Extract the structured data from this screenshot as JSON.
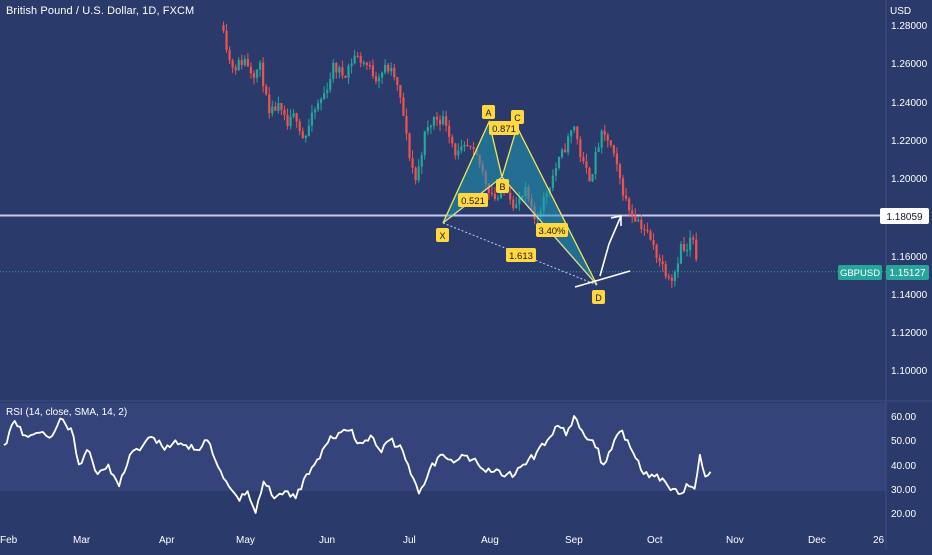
{
  "header": {
    "title": "British Pound / U.S. Dollar, 1D, FXCM"
  },
  "price_axis": {
    "unit": "USD",
    "labels": [
      "1.28000",
      "1.26000",
      "1.24000",
      "1.22000",
      "1.20000",
      "1.16000",
      "1.14000",
      "1.12000",
      "1.10000"
    ]
  },
  "rsi_axis": {
    "labels": [
      "60.00",
      "50.00",
      "40.00",
      "30.00",
      "20.00"
    ]
  },
  "time_axis": {
    "labels": [
      "Feb",
      "Mar",
      "Apr",
      "May",
      "Jun",
      "Jul",
      "Aug",
      "Sep",
      "Oct",
      "Nov",
      "Dec",
      "26"
    ]
  },
  "badges": {
    "level_value": "1.18059",
    "symbol": "GBPUSD",
    "last_price": "1.15127"
  },
  "pattern": {
    "points": [
      "X",
      "A",
      "B",
      "C",
      "D"
    ],
    "ratios": [
      "0.521",
      "0.871",
      "3.40%",
      "1.613"
    ]
  },
  "rsi": {
    "label": "RSI (14, close, SMA, 14, 2)"
  },
  "colors": {
    "background": "#2a3a6b",
    "rsi_band": "#34447a",
    "bull": "#26a69a",
    "bear": "#ef5350",
    "pattern_fill": "#1e9bb4",
    "pattern_line": "#f2e94e",
    "label_bg": "#ffd740",
    "level_line": "#c5c8f0",
    "last_price": "#26a69a"
  },
  "chart_data": [
    {
      "type": "candlestick",
      "title": "British Pound / U.S. Dollar, 1D, FXCM",
      "ylabel": "USD",
      "ylim": [
        1.09,
        1.285
      ],
      "x_range": [
        "2025-02-01",
        "2026-01-01"
      ],
      "horizontal_level": 1.18059,
      "last_price": 1.15127,
      "close_path": [
        [
          "2025-04-24",
          1.28
        ],
        [
          "2025-04-26",
          1.262
        ],
        [
          "2025-04-28",
          1.258
        ],
        [
          "2025-05-02",
          1.262
        ],
        [
          "2025-05-05",
          1.255
        ],
        [
          "2025-05-08",
          1.258
        ],
        [
          "2025-05-11",
          1.232
        ],
        [
          "2025-05-14",
          1.238
        ],
        [
          "2025-05-18",
          1.227
        ],
        [
          "2025-05-21",
          1.234
        ],
        [
          "2025-05-24",
          1.22
        ],
        [
          "2025-05-28",
          1.235
        ],
        [
          "2025-06-01",
          1.245
        ],
        [
          "2025-06-04",
          1.258
        ],
        [
          "2025-06-08",
          1.254
        ],
        [
          "2025-06-12",
          1.264
        ],
        [
          "2025-06-16",
          1.26
        ],
        [
          "2025-06-20",
          1.253
        ],
        [
          "2025-06-24",
          1.258
        ],
        [
          "2025-06-27",
          1.253
        ],
        [
          "2025-06-30",
          1.235
        ],
        [
          "2025-07-02",
          1.215
        ],
        [
          "2025-07-05",
          1.198
        ],
        [
          "2025-07-08",
          1.222
        ],
        [
          "2025-07-12",
          1.232
        ],
        [
          "2025-07-16",
          1.23
        ],
        [
          "2025-07-20",
          1.212
        ],
        [
          "2025-07-24",
          1.216
        ],
        [
          "2025-07-28",
          1.21
        ],
        [
          "2025-08-01",
          1.195
        ],
        [
          "2025-08-04",
          1.189
        ],
        [
          "2025-08-08",
          1.195
        ],
        [
          "2025-08-11",
          1.185
        ],
        [
          "2025-08-15",
          1.193
        ],
        [
          "2025-08-18",
          1.178
        ],
        [
          "2025-08-22",
          1.19
        ],
        [
          "2025-08-26",
          1.205
        ],
        [
          "2025-08-29",
          1.214
        ],
        [
          "2025-09-02",
          1.228
        ],
        [
          "2025-09-05",
          1.208
        ],
        [
          "2025-09-08",
          1.2
        ],
        [
          "2025-09-12",
          1.222
        ],
        [
          "2025-09-15",
          1.22
        ],
        [
          "2025-09-18",
          1.205
        ],
        [
          "2025-09-22",
          1.185
        ],
        [
          "2025-09-26",
          1.178
        ],
        [
          "2025-09-29",
          1.172
        ],
        [
          "2025-10-03",
          1.16
        ],
        [
          "2025-10-06",
          1.152
        ],
        [
          "2025-10-09",
          1.148
        ],
        [
          "2025-10-12",
          1.165
        ],
        [
          "2025-10-14",
          1.16
        ],
        [
          "2025-10-16",
          1.172
        ],
        [
          "2025-10-18",
          1.151
        ]
      ],
      "projection": [
        [
          "2025-10-18",
          1.155
        ],
        [
          "2025-10-22",
          1.182
        ]
      ]
    },
    {
      "type": "line",
      "title": "RSI (14, close, SMA, 14, 2)",
      "ylim": [
        18,
        63
      ],
      "band": [
        30,
        70
      ],
      "x_range": [
        "2025-02-01",
        "2026-01-01"
      ],
      "points": [
        [
          "2025-02-01",
          48
        ],
        [
          "2025-02-05",
          58
        ],
        [
          "2025-02-09",
          52
        ],
        [
          "2025-02-13",
          53
        ],
        [
          "2025-02-18",
          51
        ],
        [
          "2025-02-22",
          59
        ],
        [
          "2025-02-26",
          55
        ],
        [
          "2025-03-01",
          40
        ],
        [
          "2025-03-04",
          46
        ],
        [
          "2025-03-08",
          36
        ],
        [
          "2025-03-12",
          40
        ],
        [
          "2025-03-16",
          31
        ],
        [
          "2025-03-20",
          44
        ],
        [
          "2025-03-25",
          48
        ],
        [
          "2025-03-29",
          51
        ],
        [
          "2025-04-02",
          46
        ],
        [
          "2025-04-06",
          50
        ],
        [
          "2025-04-10",
          48
        ],
        [
          "2025-04-14",
          46
        ],
        [
          "2025-04-18",
          50
        ],
        [
          "2025-04-22",
          39
        ],
        [
          "2025-04-26",
          31
        ],
        [
          "2025-04-30",
          25
        ],
        [
          "2025-05-03",
          29
        ],
        [
          "2025-05-06",
          20
        ],
        [
          "2025-05-09",
          33
        ],
        [
          "2025-05-13",
          26
        ],
        [
          "2025-05-17",
          29
        ],
        [
          "2025-05-21",
          26
        ],
        [
          "2025-05-25",
          36
        ],
        [
          "2025-05-29",
          42
        ],
        [
          "2025-06-02",
          49
        ],
        [
          "2025-06-06",
          53
        ],
        [
          "2025-06-10",
          54
        ],
        [
          "2025-06-14",
          49
        ],
        [
          "2025-06-18",
          52
        ],
        [
          "2025-06-22",
          45
        ],
        [
          "2025-06-25",
          50
        ],
        [
          "2025-06-29",
          48
        ],
        [
          "2025-07-03",
          36
        ],
        [
          "2025-07-06",
          28
        ],
        [
          "2025-07-10",
          38
        ],
        [
          "2025-07-14",
          44
        ],
        [
          "2025-07-18",
          42
        ],
        [
          "2025-07-22",
          44
        ],
        [
          "2025-07-26",
          42
        ],
        [
          "2025-07-30",
          38
        ],
        [
          "2025-08-03",
          37
        ],
        [
          "2025-08-07",
          35
        ],
        [
          "2025-08-11",
          36
        ],
        [
          "2025-08-15",
          40
        ],
        [
          "2025-08-19",
          45
        ],
        [
          "2025-08-23",
          50
        ],
        [
          "2025-08-27",
          56
        ],
        [
          "2025-08-30",
          52
        ],
        [
          "2025-09-02",
          60
        ],
        [
          "2025-09-05",
          54
        ],
        [
          "2025-09-09",
          50
        ],
        [
          "2025-09-13",
          40
        ],
        [
          "2025-09-17",
          50
        ],
        [
          "2025-09-20",
          54
        ],
        [
          "2025-09-24",
          45
        ],
        [
          "2025-09-28",
          36
        ],
        [
          "2025-10-02",
          35
        ],
        [
          "2025-10-06",
          33
        ],
        [
          "2025-10-09",
          30
        ],
        [
          "2025-10-12",
          28
        ],
        [
          "2025-10-14",
          32
        ],
        [
          "2025-10-17",
          30
        ],
        [
          "2025-10-19",
          44
        ],
        [
          "2025-10-21",
          35
        ],
        [
          "2025-10-23",
          37
        ]
      ]
    }
  ]
}
